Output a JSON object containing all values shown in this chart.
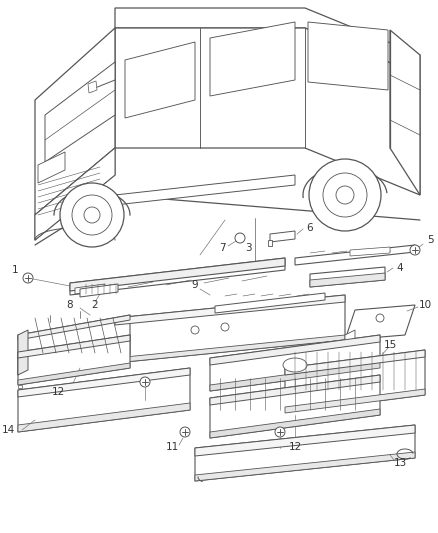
{
  "background": "#ffffff",
  "line_color": "#555555",
  "label_color": "#333333",
  "figsize": [
    4.38,
    5.33
  ],
  "dpi": 100
}
